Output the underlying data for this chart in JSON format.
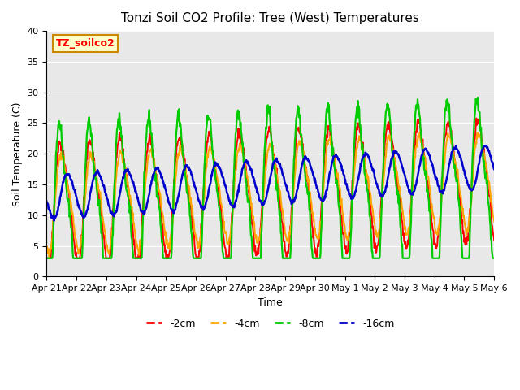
{
  "title": "Tonzi Soil CO2 Profile: Tree (West) Temperatures",
  "xlabel": "Time",
  "ylabel": "Soil Temperature (C)",
  "ylim": [
    0,
    40
  ],
  "plot_bg_color": "#e8e8e8",
  "legend_label": "TZ_soilco2",
  "legend_bg": "#ffffcc",
  "legend_border": "#cc8800",
  "series": [
    "-2cm",
    "-4cm",
    "-8cm",
    "-16cm"
  ],
  "colors": [
    "#ff0000",
    "#ffa500",
    "#00cc00",
    "#0000cc"
  ],
  "tick_labels": [
    "Apr 21",
    "Apr 22",
    "Apr 23",
    "Apr 24",
    "Apr 25",
    "Apr 26",
    "Apr 27",
    "Apr 28",
    "Apr 29",
    "Apr 30",
    "May 1",
    "May 2",
    "May 3",
    "May 4",
    "May 5",
    "May 6"
  ],
  "tick_positions": [
    0,
    1,
    2,
    3,
    4,
    5,
    6,
    7,
    8,
    9,
    10,
    11,
    12,
    13,
    14,
    15
  ],
  "n_points": 960,
  "yticks": [
    0,
    5,
    10,
    15,
    20,
    25,
    30,
    35,
    40
  ]
}
